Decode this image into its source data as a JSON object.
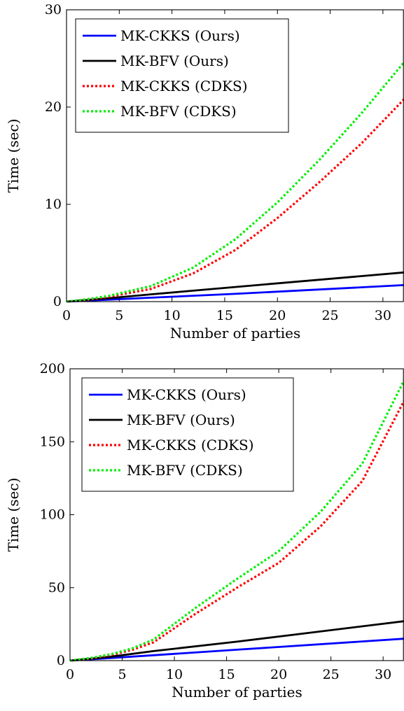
{
  "chart_data": [
    {
      "type": "line",
      "xlabel": "Number of parties",
      "ylabel": "Time (sec)",
      "xlim": [
        0,
        32
      ],
      "ylim": [
        0,
        30
      ],
      "xticks": [
        "0",
        "5",
        "10",
        "15",
        "20",
        "25",
        "30"
      ],
      "yticks": [
        "0",
        "10",
        "20",
        "30"
      ],
      "grid": false,
      "legend_position": "top-left",
      "series": [
        {
          "name": "MK-CKKS (Ours)",
          "color": "#0000ff",
          "dash": "solid",
          "x": [
            0,
            2,
            4,
            8,
            16,
            32
          ],
          "y": [
            0,
            0.1,
            0.2,
            0.4,
            0.8,
            1.7
          ]
        },
        {
          "name": "MK-BFV (Ours)",
          "color": "#000000",
          "dash": "solid",
          "x": [
            0,
            2,
            4,
            8,
            16,
            32
          ],
          "y": [
            0,
            0.17,
            0.35,
            0.75,
            1.5,
            3.0
          ]
        },
        {
          "name": "MK-CKKS (CDKS)",
          "color": "#ff0000",
          "dash": "dotted",
          "x": [
            0,
            2,
            4,
            8,
            12,
            16,
            20,
            24,
            28,
            32
          ],
          "y": [
            0,
            0.2,
            0.5,
            1.3,
            2.9,
            5.3,
            8.6,
            12.3,
            16.3,
            20.8
          ]
        },
        {
          "name": "MK-BFV (CDKS)",
          "color": "#00ee00",
          "dash": "dotted",
          "x": [
            0,
            2,
            4,
            8,
            12,
            16,
            20,
            24,
            28,
            32
          ],
          "y": [
            0,
            0.25,
            0.6,
            1.6,
            3.5,
            6.4,
            10.2,
            14.6,
            19.4,
            24.6
          ]
        }
      ]
    },
    {
      "type": "line",
      "xlabel": "Number of parties",
      "ylabel": "Time (sec)",
      "xlim": [
        0,
        32
      ],
      "ylim": [
        0,
        200
      ],
      "xticks": [
        "0",
        "5",
        "10",
        "15",
        "20",
        "25",
        "30"
      ],
      "yticks": [
        "0",
        "50",
        "100",
        "150",
        "200"
      ],
      "grid": false,
      "legend_position": "top-left",
      "series": [
        {
          "name": "MK-CKKS (Ours)",
          "color": "#0000ff",
          "dash": "solid",
          "x": [
            0,
            2,
            4,
            8,
            16,
            32
          ],
          "y": [
            0,
            0.9,
            1.8,
            3.7,
            7.5,
            15.0
          ]
        },
        {
          "name": "MK-BFV (Ours)",
          "color": "#000000",
          "dash": "solid",
          "x": [
            0,
            2,
            4,
            8,
            16,
            20,
            32
          ],
          "y": [
            0,
            1.3,
            2.8,
            6.5,
            13.0,
            16.5,
            27.0
          ]
        },
        {
          "name": "MK-CKKS (CDKS)",
          "color": "#ff0000",
          "dash": "dotted",
          "x": [
            0,
            2,
            4,
            6,
            8,
            12,
            16,
            20,
            24,
            28,
            32
          ],
          "y": [
            0,
            1.5,
            4.0,
            7.5,
            12.5,
            32.0,
            50.0,
            67.0,
            92.0,
            123.0,
            178.0
          ]
        },
        {
          "name": "MK-BFV (CDKS)",
          "color": "#00ee00",
          "dash": "dotted",
          "x": [
            0,
            2,
            4,
            6,
            8,
            12,
            16,
            20,
            24,
            28,
            32
          ],
          "y": [
            0,
            1.8,
            4.5,
            8.5,
            14.5,
            36.0,
            56.0,
            75.0,
            102.0,
            135.0,
            192.0
          ]
        }
      ]
    }
  ]
}
